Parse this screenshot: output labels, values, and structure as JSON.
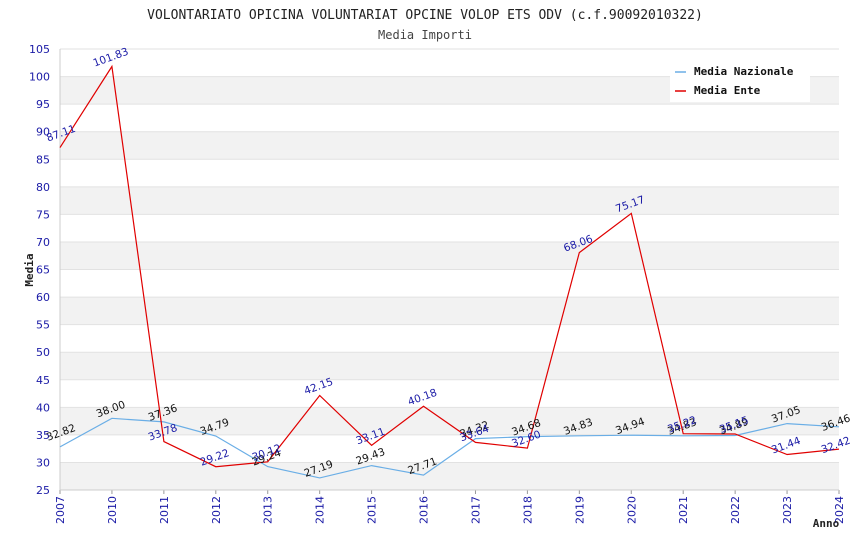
{
  "chart_data": {
    "type": "line",
    "title": "VOLONTARIATO OPICINA VOLUNTARIAT OPCINE VOLOP ETS ODV (c.f.90092010322)",
    "subtitle": "Media Importi",
    "xlabel": "Anno",
    "ylabel": "Media",
    "ylim": [
      25,
      105
    ],
    "yticks": [
      25,
      30,
      35,
      40,
      45,
      50,
      55,
      60,
      65,
      70,
      75,
      80,
      85,
      90,
      95,
      100,
      105
    ],
    "categories": [
      "2007",
      "2010",
      "2011",
      "2012",
      "2013",
      "2014",
      "2015",
      "2016",
      "2017",
      "2018",
      "2019",
      "2020",
      "2021",
      "2022",
      "2023",
      "2024"
    ],
    "series": [
      {
        "name": "Media Nazionale",
        "color": "#6aaee6",
        "label_color": "#111111",
        "values": [
          32.82,
          38.0,
          37.36,
          34.79,
          29.24,
          27.19,
          29.43,
          27.71,
          34.32,
          34.68,
          34.83,
          34.94,
          34.83,
          34.89,
          37.05,
          36.46
        ],
        "labels": [
          "32.82",
          "38.00",
          "37.36",
          "34.79",
          "29.24",
          "27.19",
          "29.43",
          "27.71",
          "34.32",
          "34.68",
          "34.83",
          "34.94",
          "34.83",
          "34.89",
          "37.05",
          "36.46"
        ]
      },
      {
        "name": "Media Ente",
        "color": "#e00000",
        "label_color": "#1a1aa6",
        "values": [
          87.11,
          101.83,
          33.78,
          29.22,
          30.12,
          42.15,
          33.11,
          40.18,
          33.64,
          32.6,
          68.06,
          75.17,
          35.22,
          35.15,
          31.44,
          32.42
        ],
        "labels": [
          "87.11",
          "101.83",
          "33.78",
          "29.22",
          "30.12",
          "42.15",
          "33.11",
          "40.18",
          "33.64",
          "32.60",
          "68.06",
          "75.17",
          "35.22",
          "35.15",
          "31.44",
          "32.42"
        ]
      }
    ],
    "legend": {
      "position": "top-right",
      "entries": [
        "Media Nazionale",
        "Media Ente"
      ]
    },
    "grid": true
  }
}
